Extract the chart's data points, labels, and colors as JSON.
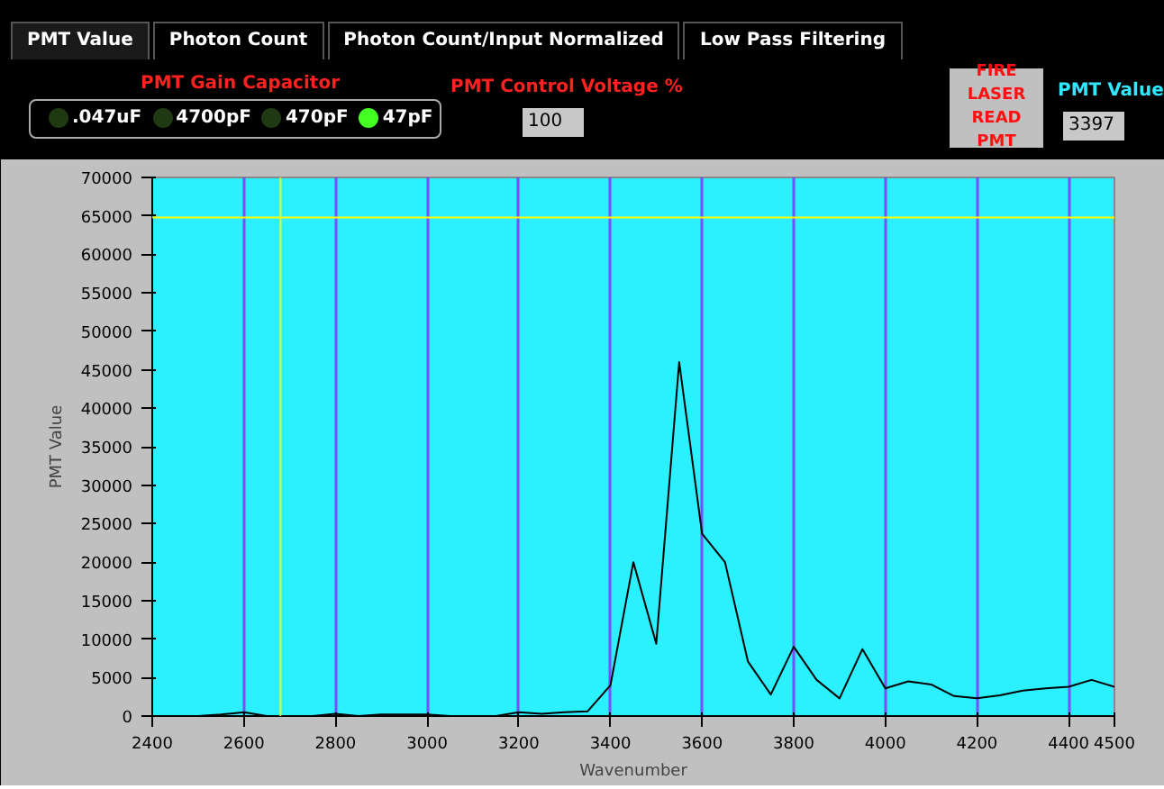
{
  "chart_data": {
    "type": "line",
    "xlabel": "Wavenumber",
    "ylabel": "PMT Value",
    "annotations": [
      "PMT Value",
      "Photon Count",
      "Photon Count/Input Normalized",
      "Low Pass Filtering",
      "PMT Gain Capacitor",
      ".047uF",
      "4700pF",
      "470pF",
      "47pF",
      "PMT Control Voltage %",
      "100",
      "FIRE LASER READ PMT",
      "PMT Value",
      "3397"
    ],
    "x": [
      2400,
      2450,
      2500,
      2550,
      2600,
      2650,
      2700,
      2750,
      2800,
      2850,
      2900,
      2950,
      3000,
      3050,
      3100,
      3150,
      3200,
      3250,
      3300,
      3350,
      3400,
      3450,
      3500,
      3550,
      3600,
      3650,
      3700,
      3750,
      3800,
      3850,
      3900,
      3950,
      4000,
      4050,
      4100,
      4150,
      4200,
      4250,
      4300,
      4350,
      4400,
      4450,
      4500
    ],
    "series": [
      {
        "color": "#000000",
        "values": [
          0,
          0,
          0,
          200,
          500,
          0,
          0,
          0,
          300,
          0,
          200,
          200,
          200,
          0,
          0,
          0,
          500,
          300,
          500,
          600,
          4000,
          20000,
          9400,
          46000,
          23700,
          20000,
          7100,
          2800,
          9000,
          4700,
          2300,
          8700,
          3600,
          4500,
          4100,
          2600,
          2300,
          2700,
          3300,
          3600,
          3800,
          4700,
          3800
        ]
      }
    ],
    "xlim": [
      2400,
      4500
    ],
    "xticks": [
      2400,
      2600,
      2800,
      3000,
      3200,
      3400,
      3600,
      3800,
      4000,
      4200,
      4400,
      4500
    ],
    "ylim": [
      0,
      70000
    ],
    "yticks": [
      0,
      5000,
      10000,
      15000,
      20000,
      25000,
      30000,
      35000,
      40000,
      45000,
      50000,
      55000,
      60000,
      65000,
      70000
    ],
    "grid": "x",
    "ref_lines": [
      {
        "axis": "x",
        "value": 2680,
        "color": "#ffff00"
      },
      {
        "axis": "y",
        "value": 64800,
        "color": "#ffff00"
      }
    ]
  }
}
